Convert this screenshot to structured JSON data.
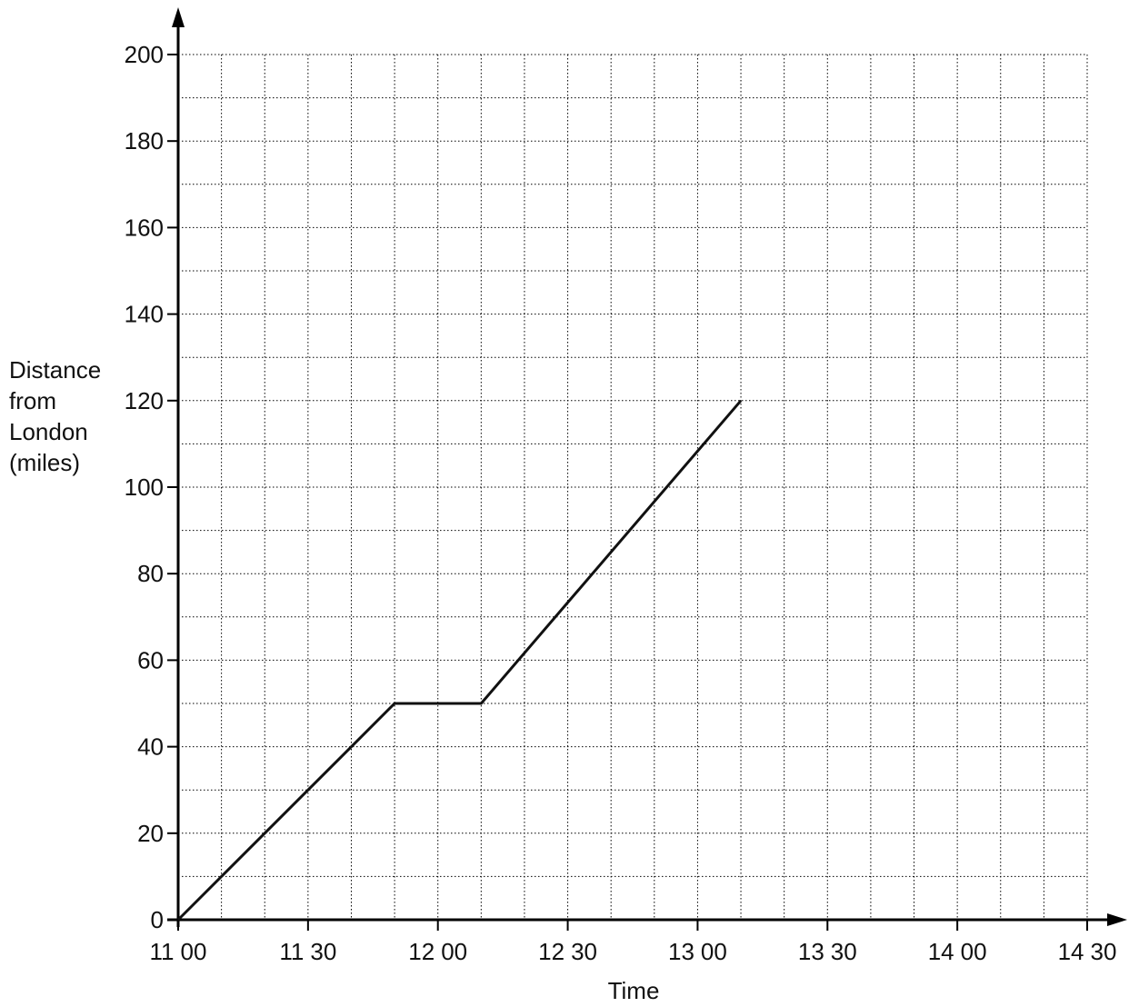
{
  "chart_data": {
    "type": "line",
    "title": "",
    "xlabel": "Time",
    "ylabel_lines": [
      "Distance",
      "from",
      "London",
      "(miles)"
    ],
    "x_tick_labels": [
      {
        "h": "11",
        "m": "00"
      },
      {
        "h": "11",
        "m": "30"
      },
      {
        "h": "12",
        "m": "00"
      },
      {
        "h": "12",
        "m": "30"
      },
      {
        "h": "13",
        "m": "00"
      },
      {
        "h": "13",
        "m": "30"
      },
      {
        "h": "14",
        "m": "00"
      },
      {
        "h": "14",
        "m": "30"
      }
    ],
    "y_ticks": [
      0,
      20,
      40,
      60,
      80,
      100,
      120,
      140,
      160,
      180,
      200
    ],
    "xlim": [
      "11:00",
      "14:30"
    ],
    "ylim": [
      0,
      200
    ],
    "grid": true,
    "series": [
      {
        "points": [
          {
            "x": "11:00",
            "y": 0
          },
          {
            "x": "11:50",
            "y": 50
          },
          {
            "x": "12:10",
            "y": 50
          },
          {
            "x": "13:10",
            "y": 120
          }
        ]
      }
    ],
    "colors": {
      "line": "#111111",
      "axis": "#000000",
      "background": "#ffffff"
    }
  }
}
